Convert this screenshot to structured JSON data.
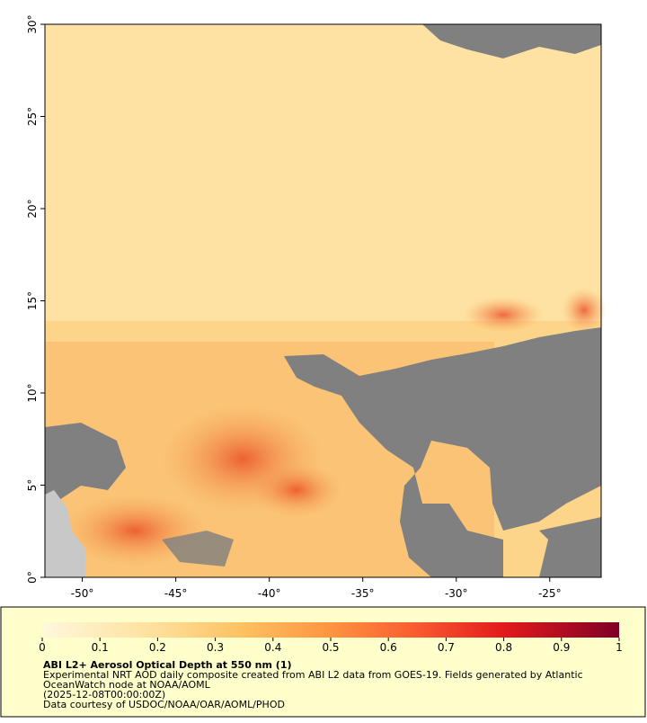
{
  "map": {
    "xlim": [
      -52,
      -22.25
    ],
    "ylim": [
      0,
      30
    ],
    "xticks": [
      {
        "value": -50,
        "label": "-50°"
      },
      {
        "value": -45,
        "label": "-45°"
      },
      {
        "value": -40,
        "label": "-40°"
      },
      {
        "value": -35,
        "label": "-35°"
      },
      {
        "value": -30,
        "label": "-30°"
      },
      {
        "value": -25,
        "label": "-25°"
      }
    ],
    "yticks": [
      {
        "value": 0,
        "label": "0°"
      },
      {
        "value": 5,
        "label": "5°"
      },
      {
        "value": 10,
        "label": "10°"
      },
      {
        "value": 15,
        "label": "15°"
      },
      {
        "value": 20,
        "label": "20°"
      },
      {
        "value": 25,
        "label": "25°"
      },
      {
        "value": 30,
        "label": "30°"
      }
    ]
  },
  "colorbar": {
    "ticks": [
      0,
      0.1,
      0.2,
      0.3,
      0.4,
      0.5,
      0.6,
      0.7,
      0.8,
      0.9,
      1
    ]
  },
  "caption": {
    "title": "ABI L2+ Aerosol Optical Depth at 550 nm (1)",
    "lines": [
      "Experimental NRT AOD daily composite created from ABI L2 data from GOES-19. Fields generated by Atlantic",
      "OceanWatch node at NOAA/AOML",
      "(2025-12-08T00:00:00Z)",
      "Data courtesy of USDOC/NOAA/OAR/AOML/PHOD"
    ]
  }
}
